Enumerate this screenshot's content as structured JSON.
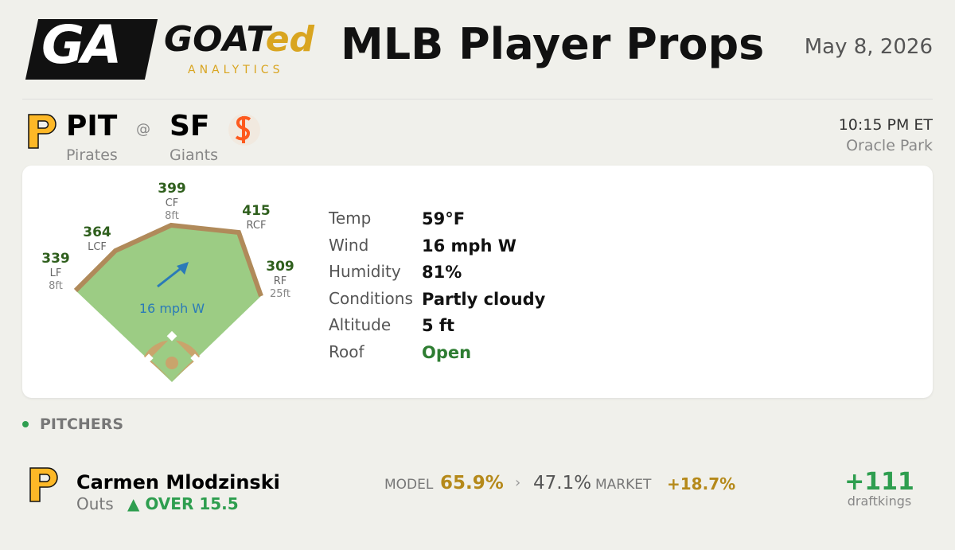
{
  "header": {
    "logo_mark": "GA",
    "logo_text": "GOAT",
    "logo_accent": "ed",
    "logo_sub": "ANALYTICS",
    "title": "MLB Player Props",
    "date": "May 8, 2026"
  },
  "game": {
    "away": {
      "abbr": "PIT",
      "name": "Pirates"
    },
    "at": "@",
    "home": {
      "abbr": "SF",
      "name": "Giants"
    },
    "time": "10:15 PM ET",
    "venue": "Oracle Park"
  },
  "field": {
    "fences": [
      {
        "distance": 339,
        "label": "LF",
        "height": "8ft"
      },
      {
        "distance": 364,
        "label": "LCF"
      },
      {
        "distance": 399,
        "label": "CF",
        "height": "8ft"
      },
      {
        "distance": 415,
        "label": "RCF"
      },
      {
        "distance": 309,
        "label": "RF",
        "height": "25ft"
      }
    ],
    "wind": "16 mph W"
  },
  "weather": {
    "rows": [
      [
        "Temp",
        "59°F"
      ],
      [
        "Wind",
        "16 mph W"
      ],
      [
        "Humidity",
        "81%"
      ],
      [
        "Conditions",
        "Partly cloudy"
      ],
      [
        "Altitude",
        "5 ft"
      ],
      [
        "Roof",
        "Open"
      ]
    ]
  },
  "pitchers": {
    "section": "PITCHERS",
    "rows": [
      {
        "player": "Carmen Mlodzinski",
        "market": "Outs",
        "pick": "▲ OVER 15.5",
        "model_label": "MODEL",
        "model": "65.9%",
        "sep": "›",
        "market_prob": "47.1%",
        "market_label": "MARKET",
        "edge": "+18.7%",
        "odds": "+111",
        "book": "draftkings"
      }
    ]
  }
}
